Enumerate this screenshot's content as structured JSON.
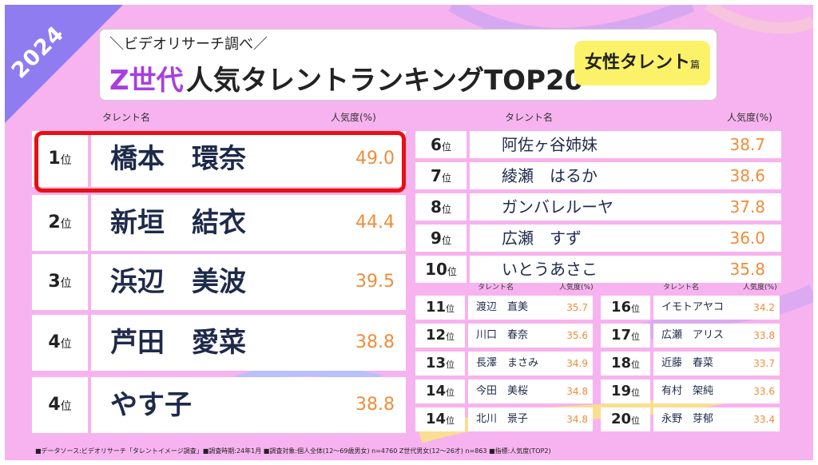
{
  "year": "2024",
  "subtitle": "＼ビデオリサーチ調べ／",
  "title_z": "Z世代",
  "title_main": "人気タレントランキングTOP20",
  "badge_main": "女性タレント",
  "badge_suffix": "篇",
  "headers": {
    "name": "タレント名",
    "value": "人気度(%)"
  },
  "footer": "■データソース:ビデオリサーチ「タレントイメージ調査」■調査時期:24年1月 ■調査対象:個人全体(12〜69歳男女) n=4760 Z世代男女(12〜26才) n=863 ■指標:人気度(TOP2)",
  "colors": {
    "background": "#f7b3ef",
    "accent_purple": "#8e7cf0",
    "value_orange": "#f08c3a",
    "highlight_red": "#e81010",
    "badge_yellow": "#fbf26a"
  },
  "chart_data": {
    "type": "table",
    "unit": "人気度(%)",
    "rank_suffix": "位",
    "rows": [
      {
        "rank": "1",
        "name": "橋本　環奈",
        "value": "49.0"
      },
      {
        "rank": "2",
        "name": "新垣　結衣",
        "value": "44.4"
      },
      {
        "rank": "3",
        "name": "浜辺　美波",
        "value": "39.5"
      },
      {
        "rank": "4",
        "name": "芦田　愛菜",
        "value": "38.8"
      },
      {
        "rank": "4",
        "name": "やす子",
        "value": "38.8"
      },
      {
        "rank": "6",
        "name": "阿佐ヶ谷姉妹",
        "value": "38.7"
      },
      {
        "rank": "7",
        "name": "綾瀬　はるか",
        "value": "38.6"
      },
      {
        "rank": "8",
        "name": "ガンバレルーヤ",
        "value": "37.8"
      },
      {
        "rank": "9",
        "name": "広瀬　すず",
        "value": "36.0"
      },
      {
        "rank": "10",
        "name": "いとうあさこ",
        "value": "35.8"
      },
      {
        "rank": "11",
        "name": "渡辺　直美",
        "value": "35.7"
      },
      {
        "rank": "12",
        "name": "川口　春奈",
        "value": "35.6"
      },
      {
        "rank": "13",
        "name": "長澤　まさみ",
        "value": "34.9"
      },
      {
        "rank": "14",
        "name": "今田　美桜",
        "value": "34.8"
      },
      {
        "rank": "14",
        "name": "北川　景子",
        "value": "34.8"
      },
      {
        "rank": "16",
        "name": "イモトアヤコ",
        "value": "34.2"
      },
      {
        "rank": "17",
        "name": "広瀬　アリス",
        "value": "33.8"
      },
      {
        "rank": "18",
        "name": "近藤　春菜",
        "value": "33.7"
      },
      {
        "rank": "19",
        "name": "有村　架純",
        "value": "33.6"
      },
      {
        "rank": "20",
        "name": "永野　芽郁",
        "value": "33.4"
      }
    ]
  }
}
